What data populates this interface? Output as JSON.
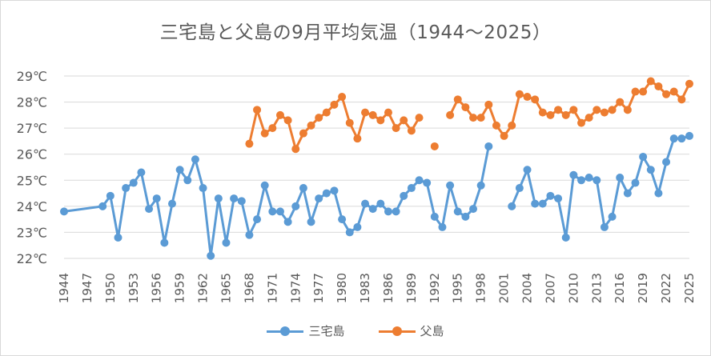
{
  "chart_data": {
    "type": "line",
    "title": "三宅島と父島の9月平均気温（1944～2025）",
    "ylim": [
      22,
      29
    ],
    "y_ticks": [
      "22℃",
      "23℃",
      "24℃",
      "25℃",
      "26℃",
      "27℃",
      "28℃",
      "29℃"
    ],
    "x_tick_labels": [
      "1944",
      "1947",
      "1950",
      "1953",
      "1956",
      "1959",
      "1962",
      "1965",
      "1968",
      "1971",
      "1974",
      "1977",
      "1980",
      "1983",
      "1986",
      "1989",
      "1992",
      "1995",
      "1998",
      "2001",
      "2004",
      "2007",
      "2010",
      "2013",
      "2016",
      "2019",
      "2022",
      "2025"
    ],
    "x_range": [
      1944,
      2025
    ],
    "grid": "horizontal",
    "legend_position": "bottom",
    "series": [
      {
        "name": "三宅島",
        "color": "#5B9BD5",
        "points": [
          [
            1944,
            23.8
          ],
          [
            1949,
            24.0
          ],
          [
            1950,
            24.4
          ],
          [
            1951,
            22.8
          ],
          [
            1952,
            24.7
          ],
          [
            1953,
            24.9
          ],
          [
            1954,
            25.3
          ],
          [
            1955,
            23.9
          ],
          [
            1956,
            24.3
          ],
          [
            1957,
            22.6
          ],
          [
            1958,
            24.1
          ],
          [
            1959,
            25.4
          ],
          [
            1960,
            25.0
          ],
          [
            1961,
            25.8
          ],
          [
            1962,
            24.7
          ],
          [
            1963,
            22.1
          ],
          [
            1964,
            24.3
          ],
          [
            1965,
            22.6
          ],
          [
            1966,
            24.3
          ],
          [
            1967,
            24.2
          ],
          [
            1968,
            22.9
          ],
          [
            1969,
            23.5
          ],
          [
            1970,
            24.8
          ],
          [
            1971,
            23.8
          ],
          [
            1972,
            23.8
          ],
          [
            1973,
            23.4
          ],
          [
            1974,
            24.0
          ],
          [
            1975,
            24.7
          ],
          [
            1976,
            23.4
          ],
          [
            1977,
            24.3
          ],
          [
            1978,
            24.5
          ],
          [
            1979,
            24.6
          ],
          [
            1980,
            23.5
          ],
          [
            1981,
            23.0
          ],
          [
            1982,
            23.2
          ],
          [
            1983,
            24.1
          ],
          [
            1984,
            23.9
          ],
          [
            1985,
            24.1
          ],
          [
            1986,
            23.8
          ],
          [
            1987,
            23.8
          ],
          [
            1988,
            24.4
          ],
          [
            1989,
            24.7
          ],
          [
            1990,
            25.0
          ],
          [
            1991,
            24.9
          ],
          [
            1992,
            23.6
          ],
          [
            1993,
            23.2
          ],
          [
            1994,
            24.8
          ],
          [
            1995,
            23.8
          ],
          [
            1996,
            23.6
          ],
          [
            1997,
            23.9
          ],
          [
            1998,
            24.8
          ],
          [
            1999,
            26.3
          ],
          null,
          [
            2002,
            24.0
          ],
          [
            2003,
            24.7
          ],
          [
            2004,
            25.4
          ],
          [
            2005,
            24.1
          ],
          [
            2006,
            24.1
          ],
          [
            2007,
            24.4
          ],
          [
            2008,
            24.3
          ],
          [
            2009,
            22.8
          ],
          [
            2010,
            25.2
          ],
          [
            2011,
            25.0
          ],
          [
            2012,
            25.1
          ],
          [
            2013,
            25.0
          ],
          [
            2014,
            23.2
          ],
          [
            2015,
            23.6
          ],
          [
            2016,
            25.1
          ],
          [
            2017,
            24.5
          ],
          [
            2018,
            24.9
          ],
          [
            2019,
            25.9
          ],
          [
            2020,
            25.4
          ],
          [
            2021,
            24.5
          ],
          [
            2022,
            25.7
          ],
          [
            2023,
            26.6
          ],
          [
            2024,
            26.6
          ],
          [
            2025,
            26.7
          ]
        ]
      },
      {
        "name": "父島",
        "color": "#ED7D31",
        "points": [
          [
            1968,
            26.4
          ],
          [
            1969,
            27.7
          ],
          [
            1970,
            26.8
          ],
          [
            1971,
            27.0
          ],
          [
            1972,
            27.5
          ],
          [
            1973,
            27.3
          ],
          [
            1974,
            26.2
          ],
          [
            1975,
            26.8
          ],
          [
            1976,
            27.1
          ],
          [
            1977,
            27.4
          ],
          [
            1978,
            27.6
          ],
          [
            1979,
            27.9
          ],
          [
            1980,
            28.2
          ],
          [
            1981,
            27.2
          ],
          [
            1982,
            26.6
          ],
          [
            1983,
            27.6
          ],
          [
            1984,
            27.5
          ],
          [
            1985,
            27.3
          ],
          [
            1986,
            27.6
          ],
          [
            1987,
            27.0
          ],
          [
            1988,
            27.3
          ],
          [
            1989,
            26.9
          ],
          [
            1990,
            27.4
          ],
          null,
          [
            1992,
            26.3
          ],
          null,
          [
            1994,
            27.5
          ],
          [
            1995,
            28.1
          ],
          [
            1996,
            27.8
          ],
          [
            1997,
            27.4
          ],
          [
            1998,
            27.4
          ],
          [
            1999,
            27.9
          ],
          [
            2000,
            27.1
          ],
          [
            2001,
            26.7
          ],
          [
            2002,
            27.1
          ],
          [
            2003,
            28.3
          ],
          [
            2004,
            28.2
          ],
          [
            2005,
            28.1
          ],
          [
            2006,
            27.6
          ],
          [
            2007,
            27.5
          ],
          [
            2008,
            27.7
          ],
          [
            2009,
            27.5
          ],
          [
            2010,
            27.7
          ],
          [
            2011,
            27.2
          ],
          [
            2012,
            27.4
          ],
          [
            2013,
            27.7
          ],
          [
            2014,
            27.6
          ],
          [
            2015,
            27.7
          ],
          [
            2016,
            28.0
          ],
          [
            2017,
            27.7
          ],
          [
            2018,
            28.4
          ],
          [
            2019,
            28.4
          ],
          [
            2020,
            28.8
          ],
          [
            2021,
            28.6
          ],
          [
            2022,
            28.3
          ],
          [
            2023,
            28.4
          ],
          [
            2024,
            28.1
          ],
          [
            2025,
            28.7
          ]
        ]
      }
    ]
  }
}
